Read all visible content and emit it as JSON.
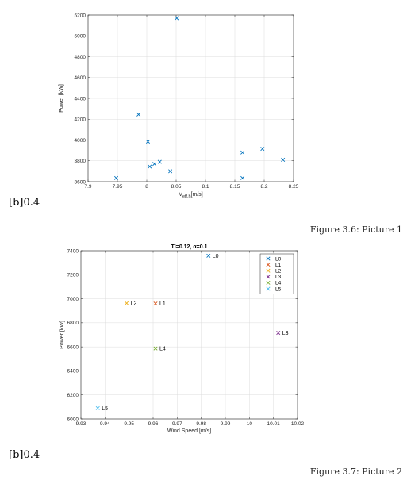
{
  "figures": [
    {
      "marker": "[b]0.4",
      "caption": "Figure 3.6: Picture 1"
    },
    {
      "marker": "[b]0.4",
      "caption": "Figure 3.7: Picture 2"
    }
  ],
  "chart_data": [
    {
      "type": "scatter",
      "title": "",
      "xlabel_main": "V",
      "xlabel_sub": "eff,h",
      "xlabel_unit": "[m/s]",
      "ylabel": "Power [kW]",
      "xlim": [
        7.9,
        8.25
      ],
      "ylim": [
        3600,
        5200
      ],
      "xticks": [
        "7.9",
        "7.95",
        "8",
        "8.05",
        "8.1",
        "8.15",
        "8.2",
        "8.25"
      ],
      "yticks": [
        "3600",
        "3800",
        "4000",
        "4200",
        "4400",
        "4600",
        "4800",
        "5000",
        "5200"
      ],
      "grid": true,
      "color": "#0072BD",
      "points": [
        {
          "x": 7.948,
          "y": 3635
        },
        {
          "x": 7.986,
          "y": 4245
        },
        {
          "x": 8.002,
          "y": 3985
        },
        {
          "x": 8.005,
          "y": 3745
        },
        {
          "x": 8.013,
          "y": 3770
        },
        {
          "x": 8.022,
          "y": 3790
        },
        {
          "x": 8.04,
          "y": 3700
        },
        {
          "x": 8.051,
          "y": 5170
        },
        {
          "x": 8.163,
          "y": 3880
        },
        {
          "x": 8.163,
          "y": 3635
        },
        {
          "x": 8.197,
          "y": 3915
        },
        {
          "x": 8.232,
          "y": 3810
        }
      ]
    },
    {
      "type": "scatter",
      "title": "TI=0.12, α=0.1",
      "xlabel": "Wind Speed [m/s]",
      "ylabel": "Power [kW]",
      "xlim": [
        9.93,
        10.02
      ],
      "ylim": [
        6000,
        7400
      ],
      "xticks": [
        "9.93",
        "9.94",
        "9.95",
        "9.96",
        "9.97",
        "9.98",
        "9.99",
        "10",
        "10.01",
        "10.02"
      ],
      "yticks": [
        "6000",
        "6200",
        "6400",
        "6600",
        "6800",
        "7000",
        "7200",
        "7400"
      ],
      "grid": true,
      "legend_position": "top-right",
      "series": [
        {
          "name": "L0",
          "color": "#0072BD",
          "x": 9.983,
          "y": 7358
        },
        {
          "name": "L1",
          "color": "#D95319",
          "x": 9.961,
          "y": 6960
        },
        {
          "name": "L2",
          "color": "#EDB120",
          "x": 9.949,
          "y": 6963
        },
        {
          "name": "L3",
          "color": "#7E2F8E",
          "x": 10.012,
          "y": 6716
        },
        {
          "name": "L4",
          "color": "#77AC30",
          "x": 9.961,
          "y": 6587
        },
        {
          "name": "L5",
          "color": "#4DBEEE",
          "x": 9.937,
          "y": 6090
        }
      ]
    }
  ]
}
